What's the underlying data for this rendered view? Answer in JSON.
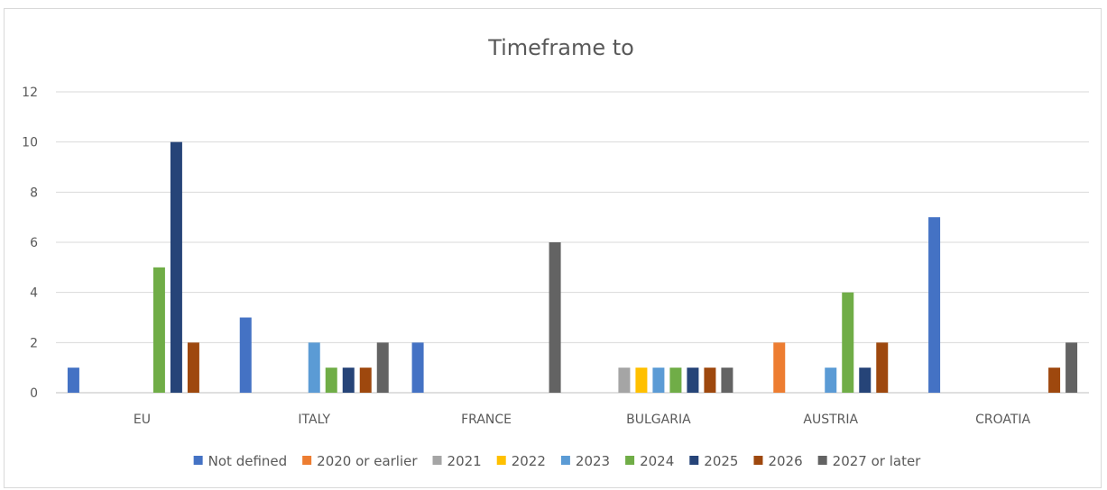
{
  "chart_data": {
    "type": "bar",
    "title": "Timeframe to",
    "xlabel": "",
    "ylabel": "",
    "ylim": [
      0,
      12
    ],
    "yticks": [
      0,
      2,
      4,
      6,
      8,
      10,
      12
    ],
    "grid": true,
    "legend_position": "bottom",
    "categories": [
      "EU",
      "ITALY",
      "FRANCE",
      "BULGARIA",
      "AUSTRIA",
      "CROATIA"
    ],
    "series": [
      {
        "name": "Not defined",
        "color": "#4472c4",
        "values": [
          1,
          3,
          2,
          0,
          0,
          7
        ]
      },
      {
        "name": "2020 or earlier",
        "color": "#ed7d31",
        "values": [
          0,
          0,
          0,
          0,
          2,
          0
        ]
      },
      {
        "name": "2021",
        "color": "#a5a5a5",
        "values": [
          0,
          0,
          0,
          1,
          0,
          0
        ]
      },
      {
        "name": "2022",
        "color": "#ffc000",
        "values": [
          0,
          0,
          0,
          1,
          0,
          0
        ]
      },
      {
        "name": "2023",
        "color": "#5b9bd5",
        "values": [
          0,
          2,
          0,
          1,
          1,
          0
        ]
      },
      {
        "name": "2024",
        "color": "#70ad47",
        "values": [
          5,
          1,
          0,
          1,
          4,
          0
        ]
      },
      {
        "name": "2025",
        "color": "#264478",
        "values": [
          10,
          1,
          0,
          1,
          1,
          0
        ]
      },
      {
        "name": "2026",
        "color": "#9e480e",
        "values": [
          2,
          1,
          0,
          1,
          2,
          1
        ]
      },
      {
        "name": "2027 or later",
        "color": "#636363",
        "values": [
          0,
          2,
          6,
          1,
          0,
          2
        ]
      }
    ]
  }
}
